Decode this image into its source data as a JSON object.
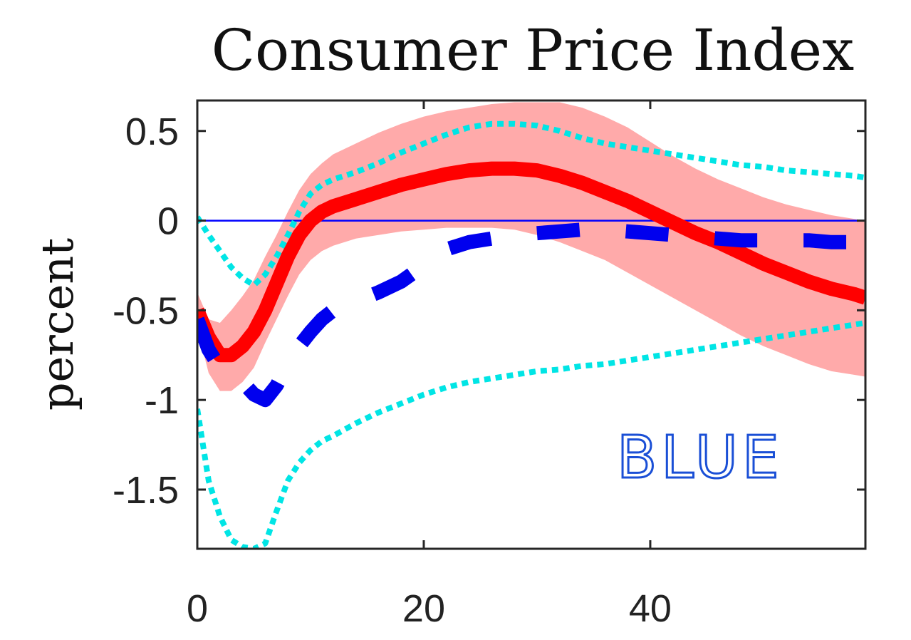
{
  "chart_data": {
    "type": "line",
    "title": "Consumer Price Index",
    "ylabel": "percent",
    "xlabel": "",
    "xlim": [
      0,
      59
    ],
    "ylim": [
      -1.83,
      0.67
    ],
    "xticks": [
      0,
      20,
      40
    ],
    "yticks": [
      0.5,
      0,
      -0.5,
      -1,
      -1.5
    ],
    "xtick_labels": [
      "0",
      "20",
      "40"
    ],
    "ytick_labels": [
      "0.5",
      "0",
      "-0.5",
      "-1",
      "-1.5"
    ],
    "annotation": "BLUE",
    "grid": false,
    "colors": {
      "median": "#ff0000",
      "band": "#ffaaaa",
      "blue_dashed": "#0000ee",
      "cyan_dotted": "#00e5e5",
      "zero_line": "#0000ff",
      "annotation": "#1a4fd6"
    },
    "x": [
      0,
      1,
      2,
      3,
      4,
      5,
      6,
      7,
      8,
      9,
      10,
      11,
      12,
      14,
      16,
      18,
      20,
      22,
      24,
      26,
      28,
      30,
      32,
      34,
      36,
      38,
      40,
      42,
      44,
      46,
      48,
      50,
      52,
      54,
      56,
      58,
      59
    ],
    "series": [
      {
        "style": "band",
        "upper": [
          -0.4,
          -0.55,
          -0.57,
          -0.5,
          -0.42,
          -0.33,
          -0.2,
          -0.08,
          0.05,
          0.17,
          0.26,
          0.32,
          0.37,
          0.43,
          0.49,
          0.54,
          0.58,
          0.61,
          0.63,
          0.65,
          0.66,
          0.66,
          0.66,
          0.63,
          0.58,
          0.52,
          0.44,
          0.36,
          0.29,
          0.23,
          0.18,
          0.13,
          0.09,
          0.06,
          0.03,
          0.01,
          0.0
        ],
        "lower": [
          -0.6,
          -0.85,
          -0.95,
          -0.95,
          -0.9,
          -0.82,
          -0.68,
          -0.55,
          -0.42,
          -0.3,
          -0.22,
          -0.17,
          -0.14,
          -0.1,
          -0.08,
          -0.06,
          -0.05,
          -0.04,
          -0.04,
          -0.04,
          -0.05,
          -0.08,
          -0.12,
          -0.17,
          -0.22,
          -0.29,
          -0.36,
          -0.43,
          -0.5,
          -0.57,
          -0.64,
          -0.7,
          -0.75,
          -0.8,
          -0.84,
          -0.86,
          -0.87
        ]
      },
      {
        "style": "solid",
        "values": [
          -0.5,
          -0.65,
          -0.75,
          -0.75,
          -0.7,
          -0.62,
          -0.5,
          -0.35,
          -0.2,
          -0.08,
          0.0,
          0.05,
          0.08,
          0.12,
          0.16,
          0.2,
          0.23,
          0.26,
          0.28,
          0.29,
          0.29,
          0.28,
          0.25,
          0.21,
          0.16,
          0.11,
          0.05,
          -0.01,
          -0.07,
          -0.12,
          -0.18,
          -0.24,
          -0.29,
          -0.34,
          -0.38,
          -0.41,
          -0.43
        ]
      },
      {
        "style": "dashed",
        "values": [
          -0.55,
          -0.72,
          -0.82,
          -0.85,
          -0.9,
          -0.97,
          -1.0,
          -0.92,
          -0.8,
          -0.7,
          -0.62,
          -0.55,
          -0.5,
          -0.45,
          -0.4,
          -0.34,
          -0.25,
          -0.16,
          -0.12,
          -0.1,
          -0.08,
          -0.07,
          -0.06,
          -0.05,
          -0.05,
          -0.06,
          -0.07,
          -0.08,
          -0.09,
          -0.1,
          -0.11,
          -0.11,
          -0.11,
          -0.11,
          -0.12,
          -0.12,
          -0.12
        ]
      },
      {
        "style": "dotted",
        "values": [
          0.02,
          -0.08,
          -0.17,
          -0.26,
          -0.32,
          -0.36,
          -0.3,
          -0.2,
          -0.08,
          0.05,
          0.15,
          0.2,
          0.23,
          0.27,
          0.32,
          0.38,
          0.43,
          0.48,
          0.52,
          0.54,
          0.54,
          0.53,
          0.5,
          0.46,
          0.43,
          0.41,
          0.39,
          0.37,
          0.35,
          0.33,
          0.31,
          0.3,
          0.28,
          0.27,
          0.26,
          0.25,
          0.24
        ]
      },
      {
        "style": "dotted",
        "values": [
          -1.05,
          -1.45,
          -1.65,
          -1.78,
          -1.82,
          -1.83,
          -1.8,
          -1.62,
          -1.45,
          -1.35,
          -1.28,
          -1.23,
          -1.2,
          -1.13,
          -1.07,
          -1.02,
          -0.97,
          -0.93,
          -0.9,
          -0.88,
          -0.86,
          -0.84,
          -0.83,
          -0.81,
          -0.8,
          -0.78,
          -0.76,
          -0.74,
          -0.72,
          -0.7,
          -0.68,
          -0.66,
          -0.64,
          -0.62,
          -0.6,
          -0.58,
          -0.57
        ]
      }
    ]
  }
}
